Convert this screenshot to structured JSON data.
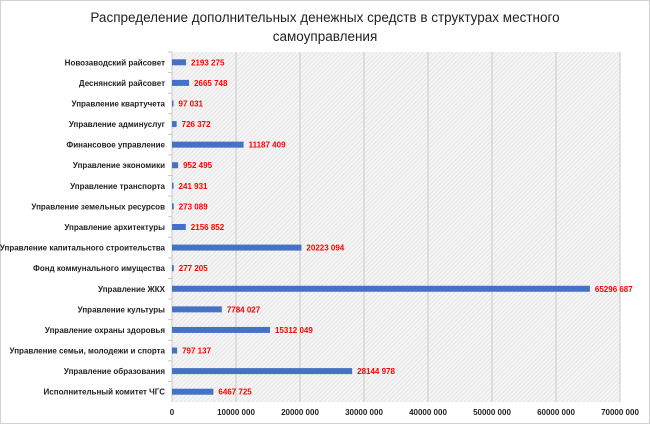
{
  "chart_data": {
    "type": "bar",
    "orientation": "horizontal",
    "title": "Распределение дополнительных денежных средств в структурах местного самоуправления",
    "categories": [
      "Новозаводский  райсовет",
      "Деснянский  райсовет",
      "Управление  квартучета",
      "Управление  админуслуг",
      "Финансовое  управление",
      "Управление  экономики",
      "Управление  транспорта",
      "Управление  земельных  ресурсов",
      "Управление  архитектуры",
      "Управление  капитального  строительства",
      "Фонд  коммунального  имущества",
      "Управление  ЖКХ",
      "Управление  культуры",
      "Управление  охраны  здоровья",
      "Управление  семьи,  молодежи  и спорта",
      "Управление  образования",
      "Исполнительный  комитет  ЧГС"
    ],
    "values": [
      2193275,
      2665748,
      97031,
      726372,
      11187409,
      952495,
      241931,
      273089,
      2156852,
      20223094,
      277205,
      65296687,
      7784027,
      15312049,
      797137,
      28144978,
      6467725
    ],
    "value_labels": [
      "2193 275",
      "2665 748",
      "97 031",
      "726 372",
      "11187 409",
      "952 495",
      "241 931",
      "273 089",
      "2156 852",
      "20223 094",
      "277 205",
      "65296 687",
      "7784 027",
      "15312 049",
      "797 137",
      "28144 978",
      "6467 725"
    ],
    "xlim": [
      0,
      70000000
    ],
    "xticks": [
      0,
      10000000,
      20000000,
      30000000,
      40000000,
      50000000,
      60000000,
      70000000
    ],
    "xtick_labels": [
      "0",
      "10000 000",
      "20000 000",
      "30000 000",
      "40000 000",
      "50000 000",
      "60000 000",
      "70000 000"
    ],
    "xlabel": "",
    "ylabel": "",
    "grid": "vertical",
    "legend": "none",
    "colors": {
      "bar": "#4472c4",
      "value_label": "#ff0000"
    }
  }
}
